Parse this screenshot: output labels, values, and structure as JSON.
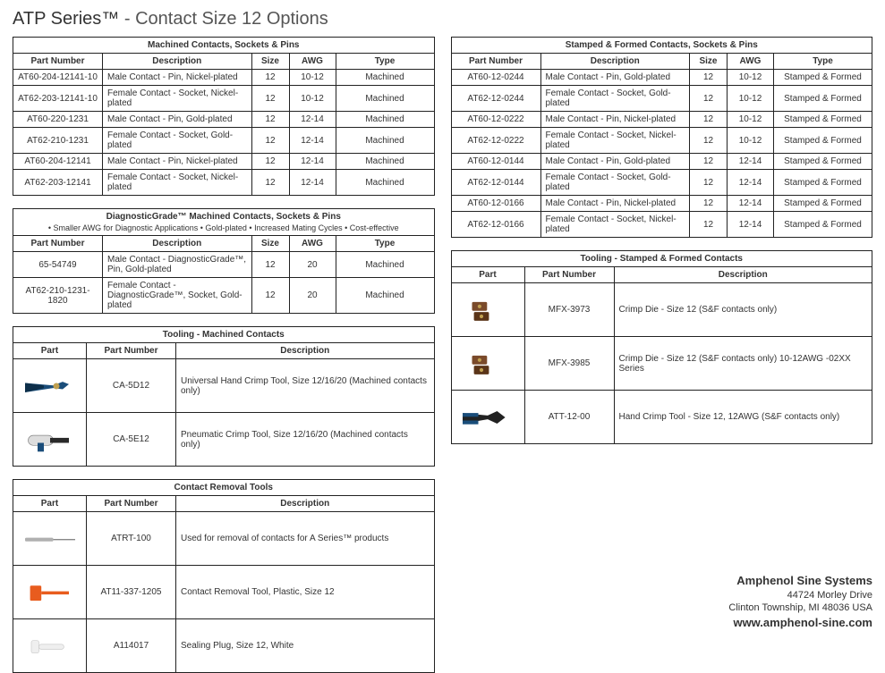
{
  "page": {
    "title_bold": "ATP Series™",
    "title_rest": " - Contact Size 12 Options"
  },
  "machined": {
    "caption": "Machined Contacts, Sockets & Pins",
    "headers": [
      "Part Number",
      "Description",
      "Size",
      "AWG",
      "Type"
    ],
    "rows": [
      [
        "AT60-204-12141-10",
        "Male Contact - Pin, Nickel-plated",
        "12",
        "10-12",
        "Machined"
      ],
      [
        "AT62-203-12141-10",
        "Female Contact - Socket, Nickel-plated",
        "12",
        "10-12",
        "Machined"
      ],
      [
        "AT60-220-1231",
        "Male Contact - Pin, Gold-plated",
        "12",
        "12-14",
        "Machined"
      ],
      [
        "AT62-210-1231",
        "Female Contact - Socket, Gold-plated",
        "12",
        "12-14",
        "Machined"
      ],
      [
        "AT60-204-12141",
        "Male Contact - Pin, Nickel-plated",
        "12",
        "12-14",
        "Machined"
      ],
      [
        "AT62-203-12141",
        "Female Contact - Socket, Nickel-plated",
        "12",
        "12-14",
        "Machined"
      ]
    ]
  },
  "diagnostic": {
    "caption": "DiagnosticGrade™ Machined Contacts, Sockets & Pins",
    "sub": "• Smaller AWG for Diagnostic Applications • Gold-plated • Increased Mating Cycles • Cost-effective",
    "headers": [
      "Part Number",
      "Description",
      "Size",
      "AWG",
      "Type"
    ],
    "rows": [
      [
        "65-54749",
        "Male Contact - DiagnosticGrade™, Pin, Gold-plated",
        "12",
        "20",
        "Machined"
      ],
      [
        "AT62-210-1231-1820",
        "Female Contact - DiagnosticGrade™, Socket, Gold-plated",
        "12",
        "20",
        "Machined"
      ]
    ]
  },
  "tooling_machined": {
    "caption": "Tooling - Machined Contacts",
    "headers": [
      "Part",
      "Part Number",
      "Description"
    ],
    "rows": [
      {
        "icon": "pliers-blue",
        "pn": "CA-5D12",
        "desc": "Universal Hand Crimp Tool, Size 12/16/20 (Machined contacts only)"
      },
      {
        "icon": "pneumatic",
        "pn": "CA-5E12",
        "desc": "Pneumatic Crimp Tool, Size 12/16/20 (Machined contacts only)"
      }
    ]
  },
  "removal": {
    "caption": "Contact Removal Tools",
    "headers": [
      "Part",
      "Part Number",
      "Description"
    ],
    "rows": [
      {
        "icon": "pick-gray",
        "pn": "ATRT-100",
        "desc": "Used for removal of contacts for A Series™ products"
      },
      {
        "icon": "pick-orange",
        "pn": "AT11-337-1205",
        "desc": "Contact Removal Tool, Plastic, Size 12"
      },
      {
        "icon": "plug-white",
        "pn": "A114017",
        "desc": "Sealing Plug, Size 12, White"
      }
    ]
  },
  "stamped": {
    "caption": "Stamped & Formed Contacts, Sockets & Pins",
    "headers": [
      "Part Number",
      "Description",
      "Size",
      "AWG",
      "Type"
    ],
    "rows": [
      [
        "AT60-12-0244",
        "Male Contact - Pin, Gold-plated",
        "12",
        "10-12",
        "Stamped & Formed"
      ],
      [
        "AT62-12-0244",
        "Female Contact - Socket, Gold-plated",
        "12",
        "10-12",
        "Stamped & Formed"
      ],
      [
        "AT60-12-0222",
        "Male Contact - Pin, Nickel-plated",
        "12",
        "10-12",
        "Stamped & Formed"
      ],
      [
        "AT62-12-0222",
        "Female Contact - Socket, Nickel-plated",
        "12",
        "10-12",
        "Stamped & Formed"
      ],
      [
        "AT60-12-0144",
        "Male Contact - Pin, Gold-plated",
        "12",
        "12-14",
        "Stamped & Formed"
      ],
      [
        "AT62-12-0144",
        "Female Contact - Socket, Gold-plated",
        "12",
        "12-14",
        "Stamped & Formed"
      ],
      [
        "AT60-12-0166",
        "Male Contact - Pin, Nickel-plated",
        "12",
        "12-14",
        "Stamped & Formed"
      ],
      [
        "AT62-12-0166",
        "Female Contact - Socket, Nickel-plated",
        "12",
        "12-14",
        "Stamped & Formed"
      ]
    ]
  },
  "tooling_stamped": {
    "caption": "Tooling - Stamped & Formed Contacts",
    "headers": [
      "Part",
      "Part Number",
      "Description"
    ],
    "rows": [
      {
        "icon": "die-copper",
        "pn": "MFX-3973",
        "desc": "Crimp Die - Size 12 (S&F contacts only)"
      },
      {
        "icon": "die-copper",
        "pn": "MFX-3985",
        "desc": "Crimp Die - Size 12 (S&F contacts only) 10-12AWG -02XX Series"
      },
      {
        "icon": "crimper-black",
        "pn": "ATT-12-00",
        "desc": "Hand Crimp Tool - Size 12, 12AWG (S&F contacts only)"
      }
    ]
  },
  "footer": {
    "name": "Amphenol Sine Systems",
    "addr1": "44724 Morley Drive",
    "addr2": "Clinton Township, MI 48036 USA",
    "url": "www.amphenol-sine.com"
  },
  "colors": {
    "border": "#222222",
    "bg": "#ffffff",
    "text": "#333333",
    "blue": "#1a4d7a",
    "orange": "#e85c1e",
    "gray": "#b0b0b0",
    "copper": "#7a4a2a",
    "white": "#efefef",
    "black": "#222222"
  }
}
